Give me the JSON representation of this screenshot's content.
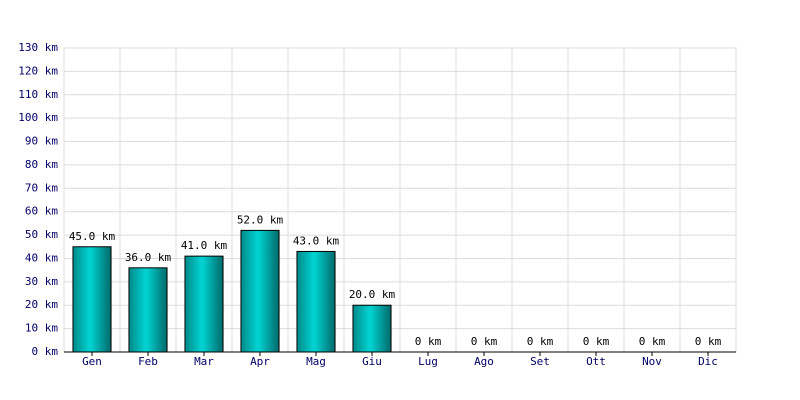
{
  "chart_data": {
    "type": "bar",
    "categories": [
      "Gen",
      "Feb",
      "Mar",
      "Apr",
      "Mag",
      "Giu",
      "Lug",
      "Ago",
      "Set",
      "Ott",
      "Nov",
      "Dic"
    ],
    "values": [
      45,
      36,
      41,
      52,
      43,
      20,
      0,
      0,
      0,
      0,
      0,
      0
    ],
    "value_labels": [
      "45.0 km",
      "36.0 km",
      "41.0 km",
      "52.0 km",
      "43.0 km",
      "20.0 km",
      "0 km",
      "0 km",
      "0 km",
      "0 km",
      "0 km",
      "0 km"
    ],
    "color": "#00d4d4",
    "ylim": [
      0,
      130
    ],
    "yticks": [
      {
        "value": 0,
        "label": "0 km"
      },
      {
        "value": 10,
        "label": "10 km"
      },
      {
        "value": 20,
        "label": "20 km"
      },
      {
        "value": 30,
        "label": "30 km"
      },
      {
        "value": 40,
        "label": "40 km"
      },
      {
        "value": 50,
        "label": "50 km"
      },
      {
        "value": 60,
        "label": "60 km"
      },
      {
        "value": 70,
        "label": "70 km"
      },
      {
        "value": 80,
        "label": "80 km"
      },
      {
        "value": 90,
        "label": "90 km"
      },
      {
        "value": 100,
        "label": "100 km"
      },
      {
        "value": 110,
        "label": "110 km"
      },
      {
        "value": 120,
        "label": "120 km"
      },
      {
        "value": 130,
        "label": "130 km"
      }
    ],
    "grid": true
  }
}
